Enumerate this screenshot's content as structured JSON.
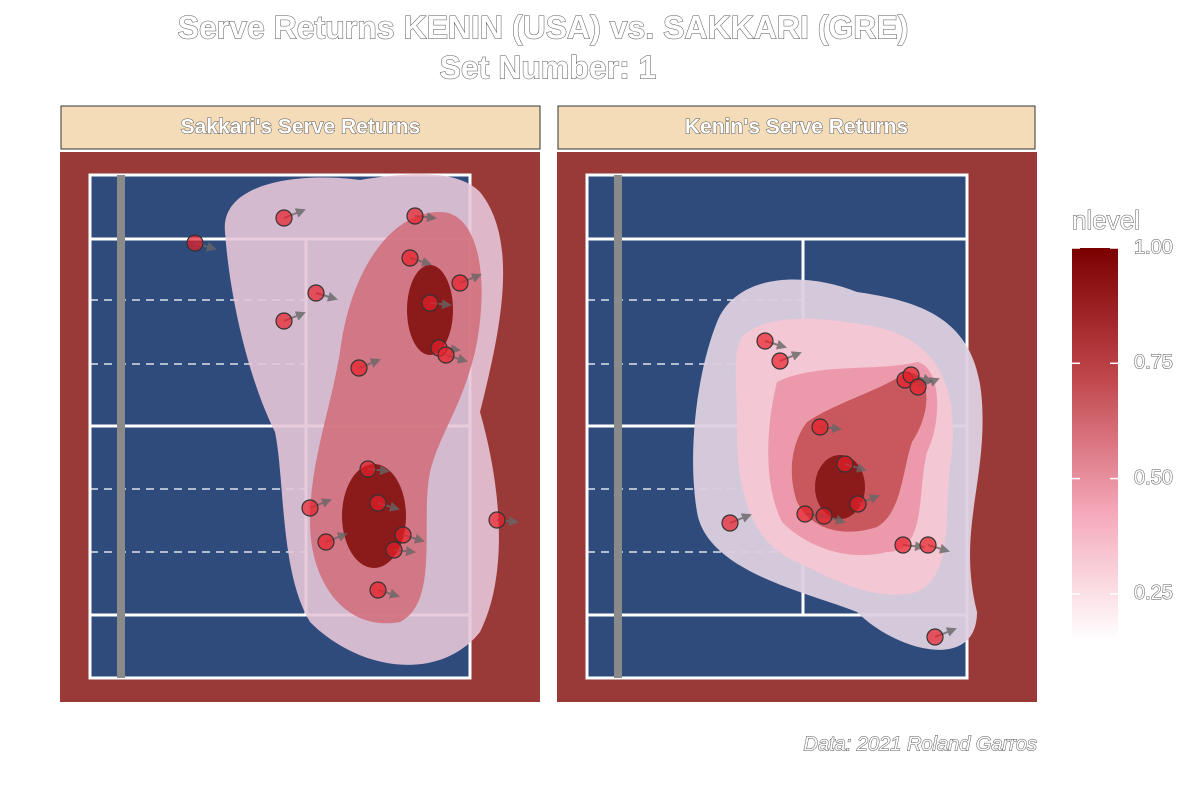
{
  "title": "Serve Returns KENIN (USA) vs. SAKKARI (GRE)",
  "subtitle": "Set Number: 1",
  "caption": "Data: 2021 Roland Garros",
  "legend": {
    "title": "nlevel",
    "colors": [
      "#ffffff",
      "#f4a6b8",
      "#c0474c",
      "#7a0000"
    ],
    "lim": [
      0.15,
      1
    ],
    "ticks": [
      0.25,
      {
        "value": 0.5,
        "label": "0.50"
      },
      0.75,
      {
        "value": 1,
        "label": "1.00"
      }
    ]
  },
  "chart_data": [
    {
      "type": "scatter",
      "title": "Sakkari's Serve Returns",
      "color": "#e8202a",
      "xlim": [
        0,
        48
      ],
      "ylim": [
        55,
        0
      ],
      "x": [
        13.5,
        22.4,
        35.5,
        35,
        40,
        37,
        25.6,
        22.4,
        37.9,
        38.6,
        29.9,
        30.8,
        31.8,
        25,
        43.7,
        34.3,
        26.6,
        33.4,
        31.8
      ],
      "y": [
        9.1,
        6.6,
        6.4,
        10.6,
        13.1,
        15.1,
        14.1,
        16.9,
        19.6,
        20.3,
        21.6,
        31.7,
        35.1,
        35.6,
        36.8,
        38.3,
        39,
        39.8,
        43.8
      ]
    },
    {
      "type": "scatter",
      "title": "Kenin's Serve Returns",
      "color": "#e8202a",
      "xlim": [
        0,
        48
      ],
      "ylim": [
        55,
        0
      ],
      "x": [
        20.8,
        22.3,
        34.8,
        35.4,
        36.1,
        26.3,
        28.8,
        30.1,
        24.8,
        26.7,
        17.3,
        34.6,
        37.1,
        37.8
      ],
      "y": [
        18.9,
        20.9,
        22.8,
        22.3,
        23.5,
        27.5,
        31.2,
        35.2,
        36.2,
        36.4,
        37.1,
        39.3,
        39.3,
        48.5
      ]
    }
  ]
}
